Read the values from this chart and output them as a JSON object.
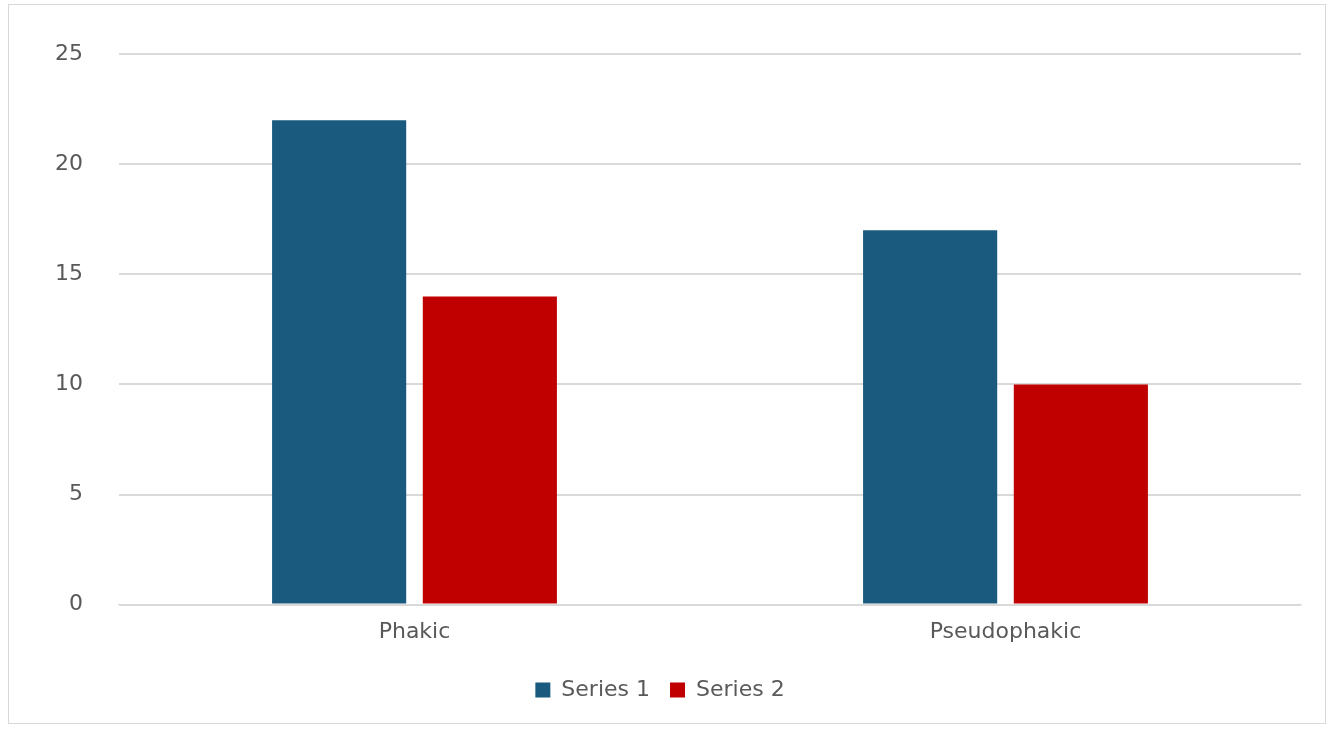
{
  "chart_data": {
    "type": "bar",
    "categories": [
      "Phakic",
      "Pseudophakic"
    ],
    "series": [
      {
        "name": "Series 1",
        "color": "#1a5a7e",
        "values": [
          22,
          17
        ]
      },
      {
        "name": "Series 2",
        "color": "#c00000",
        "values": [
          14,
          10
        ]
      }
    ],
    "ylim": [
      0,
      25
    ],
    "yticks": [
      0,
      5,
      10,
      15,
      20,
      25
    ],
    "grid": "y",
    "legend": "bottom"
  }
}
